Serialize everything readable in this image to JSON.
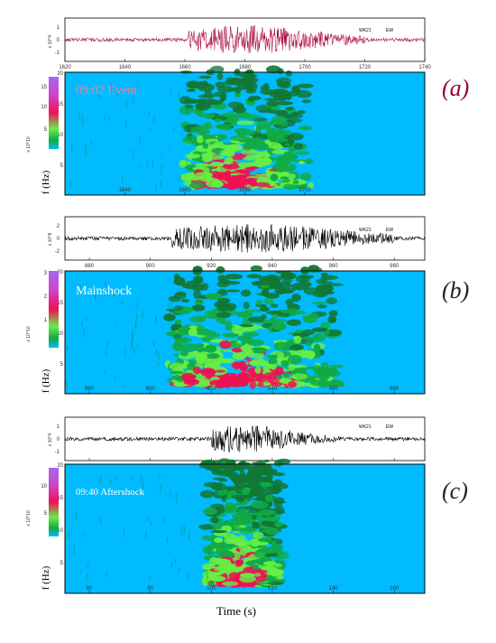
{
  "colors": {
    "spec_bg": "#00bbff",
    "panel_a_tag": "#990033",
    "panel_bc_tag": "#222222",
    "event_a": "#ff7799",
    "event_bc": "#ffffff",
    "wave_a": "#aa1144",
    "wave_bc": "#000000",
    "spec_green": "#11aa44",
    "spec_lime": "#66ee44",
    "spec_red": "#ee1155",
    "spec_darkgreen": "#117733"
  },
  "x_axis_title": "Time (s)",
  "freq_label": "f (Hz)",
  "panels": [
    {
      "id": "a",
      "tag": "(a)",
      "event_label": "09:02 Event",
      "wave_ylabel": "x 10^4",
      "wave_yticks": [
        "1",
        "0",
        "-1"
      ],
      "wave_xticks": [
        "1620",
        "1640",
        "1660",
        "1680",
        "1700",
        "1720",
        "1740"
      ],
      "wave_legend": [
        "WK21",
        "EW"
      ],
      "spec_cb_ticks": [
        "15",
        "10",
        "5"
      ],
      "spec_cb_label": "x 10^10",
      "spec_yticks": [
        "20",
        "15",
        "10",
        "5"
      ],
      "spec_xticks": [
        "1640",
        "1660",
        "1680",
        "1700"
      ],
      "spec_xrange": [
        1620,
        1740
      ],
      "wave_xrange": [
        1620,
        1740
      ],
      "spec_ticks_pos": [
        1640,
        1660,
        1680,
        1700
      ],
      "wave_ticks_pos": [
        1620,
        1640,
        1660,
        1680,
        1700,
        1720,
        1740
      ],
      "energy_onset": 1661,
      "energy_end": 1700,
      "wave_color_key": "wave_a",
      "tag_color_key": "panel_a_tag",
      "label_color_key": "event_a"
    },
    {
      "id": "b",
      "tag": "(b)",
      "event_label": "Mainshock",
      "wave_ylabel": "x 10^8",
      "wave_yticks": [
        "2",
        "0",
        "-2"
      ],
      "wave_xticks": [
        "880",
        "900",
        "920",
        "940",
        "960",
        "980"
      ],
      "wave_legend": [
        "WK21",
        "EW"
      ],
      "spec_cb_ticks": [
        "3",
        "2",
        "1"
      ],
      "spec_cb_label": "x 10^10",
      "spec_yticks": [
        "20",
        "15",
        "10",
        "5"
      ],
      "spec_xticks": [
        "880",
        "900",
        "920",
        "940",
        "960",
        "980"
      ],
      "spec_xrange": [
        872,
        990
      ],
      "wave_xrange": [
        872,
        990
      ],
      "spec_ticks_pos": [
        880,
        900,
        920,
        940,
        960,
        980
      ],
      "wave_ticks_pos": [
        880,
        900,
        920,
        940,
        960,
        980
      ],
      "energy_onset": 907,
      "energy_end": 960,
      "wave_color_key": "wave_bc",
      "tag_color_key": "panel_bc_tag",
      "label_color_key": "event_bc"
    },
    {
      "id": "c",
      "tag": "(c)",
      "event_label": "09:40 Aftershock",
      "wave_ylabel": "x 10^4",
      "wave_yticks": [
        "1",
        "0",
        "-1"
      ],
      "wave_xticks": [
        "60",
        "80",
        "100",
        "120",
        "140",
        "160"
      ],
      "wave_legend": [
        "WK21",
        "EW"
      ],
      "spec_cb_ticks": [
        "10",
        "5"
      ],
      "spec_cb_label": "x 10^10",
      "spec_yticks": [
        "20",
        "15",
        "10",
        "5"
      ],
      "spec_xticks": [
        "60",
        "80",
        "100",
        "120",
        "140",
        "160"
      ],
      "spec_xrange": [
        52,
        170
      ],
      "wave_xrange": [
        52,
        170
      ],
      "spec_ticks_pos": [
        60,
        80,
        100,
        120,
        140,
        160
      ],
      "wave_ticks_pos": [
        60,
        80,
        100,
        120,
        140,
        160
      ],
      "energy_onset": 100,
      "energy_end": 122,
      "wave_color_key": "wave_bc",
      "tag_color_key": "panel_bc_tag",
      "label_color_key": "event_bc"
    }
  ]
}
